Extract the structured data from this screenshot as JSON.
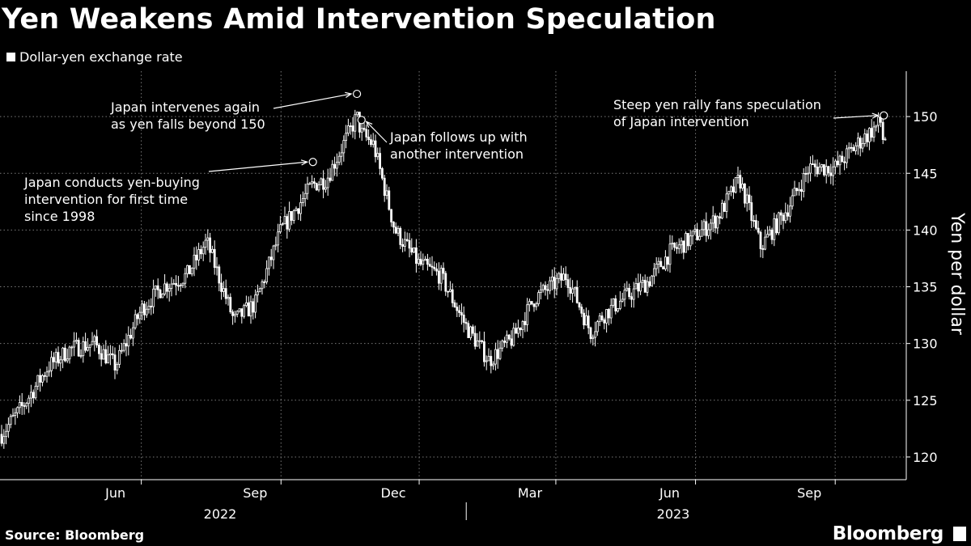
{
  "title": "Yen Weakens Amid Intervention Speculation",
  "legend": "Dollar-yen exchange rate",
  "source": "Source: Bloomberg",
  "brand": "Bloomberg",
  "chart_data": {
    "type": "candlestick",
    "title": "Yen Weakens Amid Intervention Speculation",
    "ylabel": "Yen per dollar",
    "ylim": [
      118,
      154
    ],
    "yticks": [
      120,
      125,
      130,
      135,
      140,
      145,
      150
    ],
    "x_month_ticks": [
      "Jun",
      "Sep",
      "Dec",
      "Mar",
      "Jun",
      "Sep"
    ],
    "x_year_labels": [
      "2022",
      "2023"
    ],
    "series": [
      {
        "name": "Dollar-yen exchange rate",
        "x": [
          "2022-03-01",
          "2022-03-15",
          "2022-04-01",
          "2022-04-15",
          "2022-05-01",
          "2022-05-15",
          "2022-06-01",
          "2022-06-15",
          "2022-07-01",
          "2022-07-14",
          "2022-08-01",
          "2022-08-15",
          "2022-09-01",
          "2022-09-22",
          "2022-10-01",
          "2022-10-21",
          "2022-10-24",
          "2022-11-01",
          "2022-11-15",
          "2022-12-01",
          "2022-12-15",
          "2023-01-01",
          "2023-01-16",
          "2023-02-01",
          "2023-02-15",
          "2023-03-08",
          "2023-03-24",
          "2023-04-01",
          "2023-04-15",
          "2023-05-01",
          "2023-05-15",
          "2023-06-01",
          "2023-06-15",
          "2023-06-30",
          "2023-07-14",
          "2023-08-01",
          "2023-08-15",
          "2023-09-01",
          "2023-09-15",
          "2023-10-01",
          "2023-10-03",
          "2023-10-05"
        ],
        "values": [
          122.0,
          124.5,
          128.0,
          129.5,
          130.0,
          128.0,
          133.0,
          135.0,
          136.0,
          139.0,
          132.0,
          133.5,
          140.0,
          144.0,
          144.5,
          150.0,
          148.5,
          147.5,
          140.0,
          137.0,
          136.0,
          131.5,
          128.5,
          130.5,
          134.0,
          136.0,
          131.0,
          132.5,
          134.0,
          135.5,
          138.0,
          139.5,
          141.0,
          144.5,
          138.5,
          142.0,
          145.5,
          145.5,
          147.5,
          149.5,
          147.5,
          149.0
        ]
      }
    ],
    "annotations": [
      {
        "text_lines": [
          "Japan conducts yen-buying",
          "intervention for first time",
          "since 1998"
        ],
        "date": "2022-09-22",
        "value": 146.0
      },
      {
        "text_lines": [
          "Japan intervenes again",
          "as yen falls beyond 150"
        ],
        "date": "2022-10-21",
        "value": 152.0
      },
      {
        "text_lines": [
          "Japan follows up with",
          "another intervention"
        ],
        "date": "2022-10-24",
        "value": 149.7
      },
      {
        "text_lines": [
          "Steep yen rally fans speculation",
          "of Japan intervention"
        ],
        "date": "2023-10-03",
        "value": 150.1
      }
    ]
  }
}
